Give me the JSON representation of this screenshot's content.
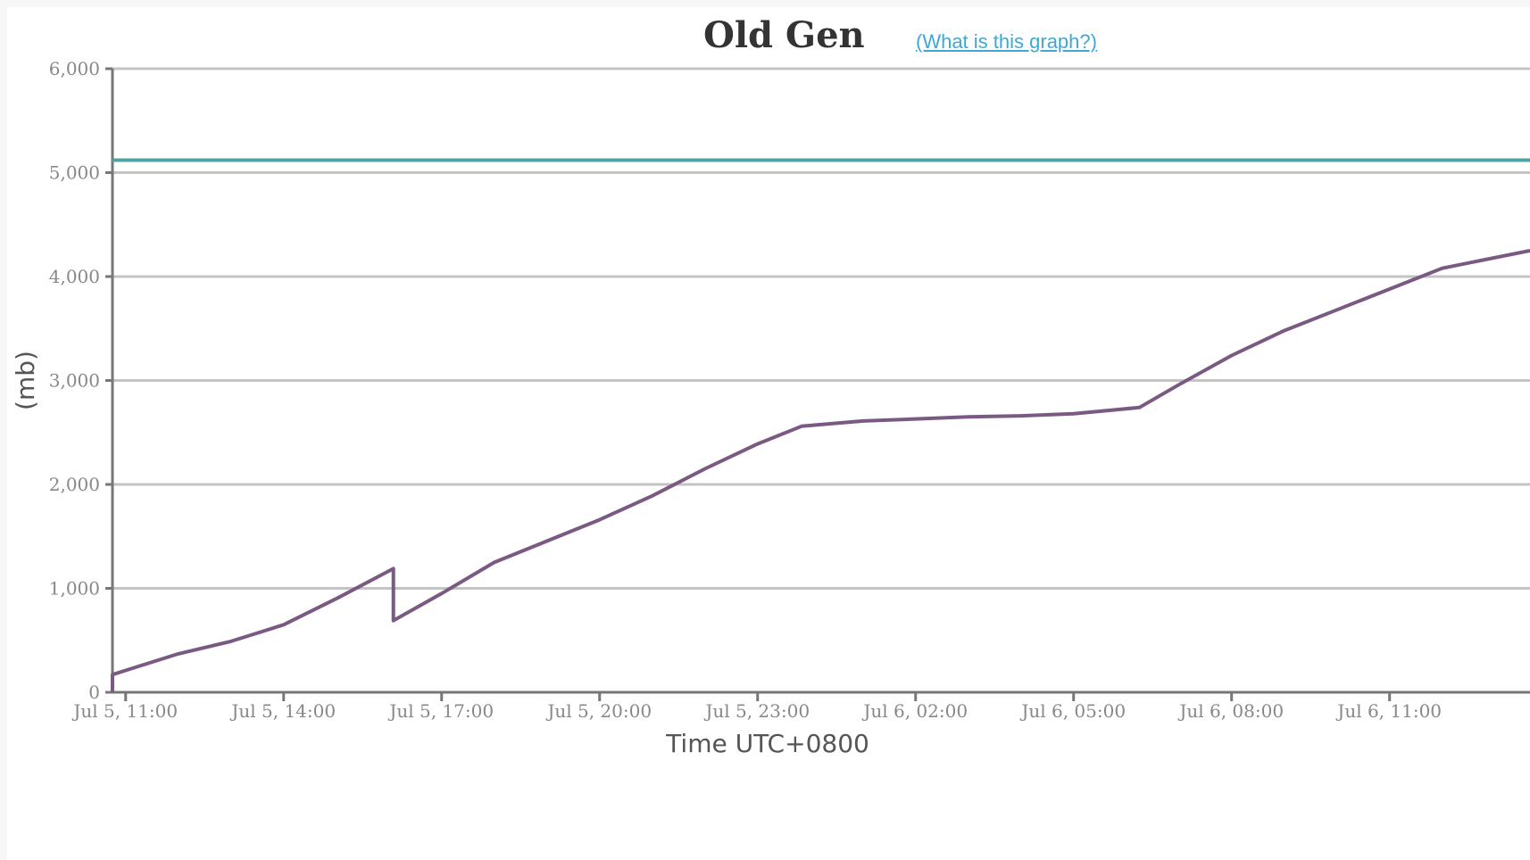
{
  "header": {
    "help_link": "(What is this graph?)"
  },
  "colors": {
    "grid": "#c4c4c4",
    "axis": "#777777",
    "used_series": "#7a5a82",
    "max_series": "#4fa3a0"
  },
  "chart_data": {
    "type": "line",
    "title": "Old Gen",
    "xlabel": "Time UTC+0800",
    "ylabel": "(mb)",
    "ylim": [
      0,
      6000
    ],
    "y_ticks": [
      0,
      1000,
      2000,
      3000,
      4000,
      5000,
      6000
    ],
    "y_tick_labels": [
      "0",
      "1,000",
      "2,000",
      "3,000",
      "4,000",
      "5,000",
      "6,000"
    ],
    "x_range": [
      "2024-07-05 10:45",
      "2024-07-06 13:40"
    ],
    "x_ticks": [
      "2024-07-05 11:00",
      "2024-07-05 14:00",
      "2024-07-05 17:00",
      "2024-07-05 20:00",
      "2024-07-05 23:00",
      "2024-07-06 02:00",
      "2024-07-06 05:00",
      "2024-07-06 08:00",
      "2024-07-06 11:00"
    ],
    "x_tick_labels": [
      "Jul 5, 11:00",
      "Jul 5, 14:00",
      "Jul 5, 17:00",
      "Jul 5, 20:00",
      "Jul 5, 23:00",
      "Jul 6, 02:00",
      "Jul 6, 05:00",
      "Jul 6, 08:00",
      "Jul 6, 11:00"
    ],
    "grid": true,
    "legend": "none",
    "series": [
      {
        "key": "max",
        "points": [
          [
            "2024-07-05 10:45",
            5120
          ],
          [
            "2024-07-06 13:40",
            5120
          ]
        ]
      },
      {
        "key": "used",
        "points": [
          [
            "2024-07-05 10:45",
            0
          ],
          [
            "2024-07-05 10:45",
            170
          ],
          [
            "2024-07-05 11:00",
            210
          ],
          [
            "2024-07-05 12:00",
            370
          ],
          [
            "2024-07-05 13:00",
            490
          ],
          [
            "2024-07-05 13:30",
            570
          ],
          [
            "2024-07-05 14:00",
            650
          ],
          [
            "2024-07-05 15:00",
            900
          ],
          [
            "2024-07-05 16:05",
            1190
          ],
          [
            "2024-07-05 16:05",
            690
          ],
          [
            "2024-07-05 17:00",
            950
          ],
          [
            "2024-07-05 18:00",
            1250
          ],
          [
            "2024-07-05 20:00",
            1660
          ],
          [
            "2024-07-05 21:00",
            1890
          ],
          [
            "2024-07-05 22:00",
            2150
          ],
          [
            "2024-07-05 23:00",
            2390
          ],
          [
            "2024-07-05 23:50",
            2560
          ],
          [
            "2024-07-06 01:00",
            2610
          ],
          [
            "2024-07-06 02:00",
            2630
          ],
          [
            "2024-07-06 03:00",
            2650
          ],
          [
            "2024-07-06 04:00",
            2660
          ],
          [
            "2024-07-06 05:00",
            2680
          ],
          [
            "2024-07-06 06:15",
            2740
          ],
          [
            "2024-07-06 07:00",
            2960
          ],
          [
            "2024-07-06 08:00",
            3240
          ],
          [
            "2024-07-06 09:00",
            3480
          ],
          [
            "2024-07-06 10:00",
            3680
          ],
          [
            "2024-07-06 11:00",
            3880
          ],
          [
            "2024-07-06 12:00",
            4080
          ],
          [
            "2024-07-06 13:40",
            4250
          ]
        ]
      }
    ]
  }
}
